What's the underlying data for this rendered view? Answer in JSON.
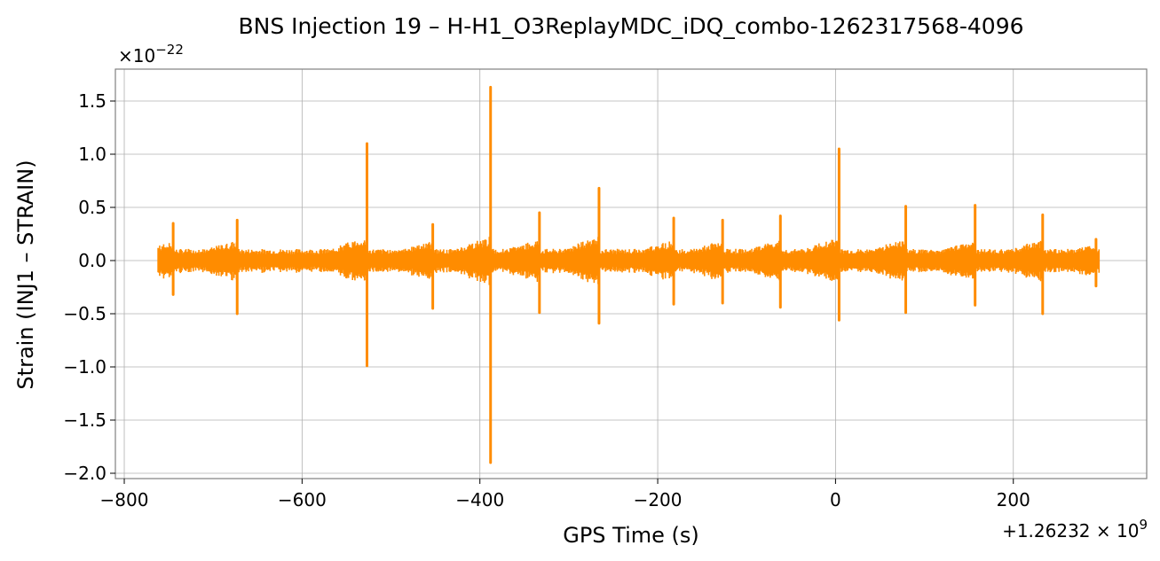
{
  "chart_data": {
    "type": "line",
    "title": "BNS Injection 19 – H-H1_O3ReplayMDC_iDQ_combo-1262317568-4096",
    "xlabel": "GPS Time (s)",
    "ylabel": "Strain (INJ1 – STRAIN)",
    "x_offset_label": "+1.26232 × 10",
    "x_offset_exp": "9",
    "y_scale_label": "×10",
    "y_scale_exp": "−22",
    "xlim": [
      -810,
      350
    ],
    "ylim": [
      -2.05,
      1.8
    ],
    "x_ticks": [
      -800,
      -600,
      -400,
      -200,
      0,
      200
    ],
    "x_tick_labels": [
      "−800",
      "−600",
      "−400",
      "−200",
      "0",
      "200"
    ],
    "y_ticks": [
      -2.0,
      -1.5,
      -1.0,
      -0.5,
      0.0,
      0.5,
      1.0,
      1.5
    ],
    "y_tick_labels": [
      "−2.0",
      "−1.5",
      "−1.0",
      "−0.5",
      "0.0",
      "0.5",
      "1.0",
      "1.5"
    ],
    "grid": true,
    "line_color": "#ff8c00",
    "series": [
      {
        "x_range": [
          -762,
          297
        ],
        "baseline_amplitude": 0.11,
        "spikes": [
          {
            "t": -745,
            "up": 0.35,
            "down": -0.32
          },
          {
            "t": -673,
            "up": 0.38,
            "down": -0.5
          },
          {
            "t": -527,
            "up": 1.1,
            "down": -0.99
          },
          {
            "t": -453,
            "up": 0.34,
            "down": -0.45
          },
          {
            "t": -388,
            "up": 1.63,
            "down": -1.9
          },
          {
            "t": -333,
            "up": 0.45,
            "down": -0.49
          },
          {
            "t": -266,
            "up": 0.68,
            "down": -0.59
          },
          {
            "t": -182,
            "up": 0.4,
            "down": -0.41
          },
          {
            "t": -127,
            "up": 0.38,
            "down": -0.4
          },
          {
            "t": -62,
            "up": 0.42,
            "down": -0.44
          },
          {
            "t": 4,
            "up": 1.05,
            "down": -0.56
          },
          {
            "t": 79,
            "up": 0.51,
            "down": -0.49
          },
          {
            "t": 157,
            "up": 0.52,
            "down": -0.42
          },
          {
            "t": 233,
            "up": 0.43,
            "down": -0.5
          },
          {
            "t": 293,
            "up": 0.2,
            "down": -0.24
          }
        ]
      }
    ]
  }
}
